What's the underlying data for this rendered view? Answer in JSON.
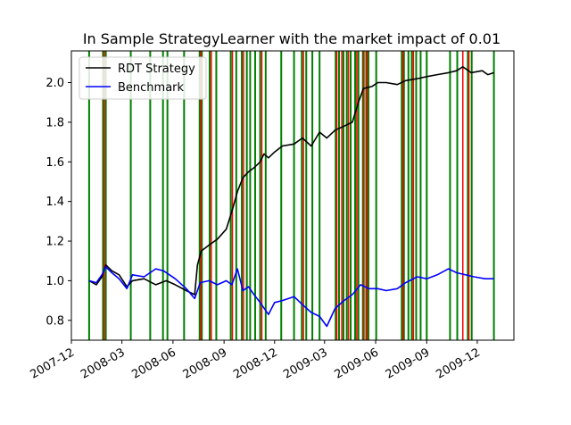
{
  "chart_data": {
    "type": "line",
    "title": "In Sample StrategyLearner with the market impact of 0.01",
    "xlabel": "",
    "ylabel": "",
    "xlim": [
      "2007-12-01",
      "2010-02-05"
    ],
    "ylim": [
      0.7,
      2.16
    ],
    "x_ticks": [
      "2007-12",
      "2008-03",
      "2008-06",
      "2008-09",
      "2008-12",
      "2009-03",
      "2009-06",
      "2009-09",
      "2009-12"
    ],
    "y_ticks": [
      0.8,
      1.0,
      1.2,
      1.4,
      1.6,
      1.8,
      2.0
    ],
    "grid": false,
    "legend": {
      "placement": "top-left",
      "entries": [
        "RDT Strategy",
        "Benchmark"
      ]
    },
    "series": [
      {
        "name": "RDT Strategy",
        "color": "#000000",
        "points": [
          [
            "2008-01-02",
            1.0
          ],
          [
            "2008-01-15",
            0.98
          ],
          [
            "2008-01-25",
            1.02
          ],
          [
            "2008-02-01",
            1.08
          ],
          [
            "2008-02-12",
            1.05
          ],
          [
            "2008-02-25",
            1.03
          ],
          [
            "2008-03-10",
            0.97
          ],
          [
            "2008-03-20",
            1.0
          ],
          [
            "2008-04-10",
            1.01
          ],
          [
            "2008-05-01",
            0.98
          ],
          [
            "2008-05-20",
            1.0
          ],
          [
            "2008-06-05",
            0.98
          ],
          [
            "2008-06-25",
            0.95
          ],
          [
            "2008-07-10",
            0.93
          ],
          [
            "2008-07-15",
            1.08
          ],
          [
            "2008-07-22",
            1.15
          ],
          [
            "2008-08-05",
            1.18
          ],
          [
            "2008-08-20",
            1.21
          ],
          [
            "2008-09-05",
            1.26
          ],
          [
            "2008-09-15",
            1.35
          ],
          [
            "2008-09-25",
            1.45
          ],
          [
            "2008-10-05",
            1.52
          ],
          [
            "2008-10-15",
            1.55
          ],
          [
            "2008-10-25",
            1.57
          ],
          [
            "2008-11-05",
            1.6
          ],
          [
            "2008-11-12",
            1.64
          ],
          [
            "2008-11-20",
            1.62
          ],
          [
            "2008-12-01",
            1.65
          ],
          [
            "2008-12-15",
            1.68
          ],
          [
            "2009-01-05",
            1.69
          ],
          [
            "2009-01-20",
            1.72
          ],
          [
            "2009-02-05",
            1.68
          ],
          [
            "2009-02-20",
            1.75
          ],
          [
            "2009-03-05",
            1.72
          ],
          [
            "2009-03-20",
            1.76
          ],
          [
            "2009-04-05",
            1.78
          ],
          [
            "2009-04-20",
            1.8
          ],
          [
            "2009-05-01",
            1.9
          ],
          [
            "2009-05-10",
            1.97
          ],
          [
            "2009-05-25",
            1.98
          ],
          [
            "2009-06-05",
            2.0
          ],
          [
            "2009-06-20",
            2.0
          ],
          [
            "2009-07-10",
            1.99
          ],
          [
            "2009-07-25",
            2.01
          ],
          [
            "2009-08-15",
            2.02
          ],
          [
            "2009-09-01",
            2.03
          ],
          [
            "2009-09-20",
            2.04
          ],
          [
            "2009-10-10",
            2.05
          ],
          [
            "2009-10-25",
            2.06
          ],
          [
            "2009-11-05",
            2.08
          ],
          [
            "2009-11-20",
            2.05
          ],
          [
            "2009-12-10",
            2.06
          ],
          [
            "2009-12-20",
            2.04
          ],
          [
            "2009-12-31",
            2.05
          ]
        ]
      },
      {
        "name": "Benchmark",
        "color": "#0000ff",
        "points": [
          [
            "2008-01-02",
            1.0
          ],
          [
            "2008-01-15",
            0.99
          ],
          [
            "2008-01-25",
            1.03
          ],
          [
            "2008-02-01",
            1.07
          ],
          [
            "2008-02-12",
            1.04
          ],
          [
            "2008-02-25",
            1.01
          ],
          [
            "2008-03-10",
            0.96
          ],
          [
            "2008-03-20",
            1.03
          ],
          [
            "2008-04-10",
            1.02
          ],
          [
            "2008-05-01",
            1.06
          ],
          [
            "2008-05-15",
            1.05
          ],
          [
            "2008-06-05",
            1.01
          ],
          [
            "2008-06-25",
            0.96
          ],
          [
            "2008-07-10",
            0.91
          ],
          [
            "2008-07-20",
            0.99
          ],
          [
            "2008-08-05",
            1.0
          ],
          [
            "2008-08-20",
            0.98
          ],
          [
            "2008-09-05",
            1.0
          ],
          [
            "2008-09-15",
            0.98
          ],
          [
            "2008-09-25",
            1.06
          ],
          [
            "2008-10-05",
            0.95
          ],
          [
            "2008-10-15",
            0.97
          ],
          [
            "2008-10-25",
            0.93
          ],
          [
            "2008-11-05",
            0.89
          ],
          [
            "2008-11-20",
            0.83
          ],
          [
            "2008-12-01",
            0.89
          ],
          [
            "2008-12-15",
            0.9
          ],
          [
            "2009-01-05",
            0.92
          ],
          [
            "2009-01-20",
            0.88
          ],
          [
            "2009-02-05",
            0.84
          ],
          [
            "2009-02-20",
            0.82
          ],
          [
            "2009-03-05",
            0.77
          ],
          [
            "2009-03-20",
            0.86
          ],
          [
            "2009-04-05",
            0.9
          ],
          [
            "2009-04-20",
            0.93
          ],
          [
            "2009-05-05",
            0.98
          ],
          [
            "2009-05-20",
            0.96
          ],
          [
            "2009-06-05",
            0.96
          ],
          [
            "2009-06-20",
            0.95
          ],
          [
            "2009-07-10",
            0.96
          ],
          [
            "2009-07-25",
            0.99
          ],
          [
            "2009-08-15",
            1.02
          ],
          [
            "2009-09-01",
            1.01
          ],
          [
            "2009-09-20",
            1.03
          ],
          [
            "2009-10-10",
            1.06
          ],
          [
            "2009-10-25",
            1.04
          ],
          [
            "2009-11-10",
            1.03
          ],
          [
            "2009-11-25",
            1.02
          ],
          [
            "2009-12-15",
            1.01
          ],
          [
            "2009-12-31",
            1.01
          ]
        ]
      }
    ],
    "vertical_lines": {
      "long_color": "#008000",
      "short_color": "#ff0000",
      "long_dates": [
        "2008-01-02",
        "2008-01-27",
        "2008-02-01",
        "2008-03-17",
        "2008-04-21",
        "2008-05-14",
        "2008-05-22",
        "2008-06-21",
        "2008-07-19",
        "2008-07-23",
        "2008-08-06",
        "2008-08-18",
        "2008-09-13",
        "2008-09-23",
        "2008-10-03",
        "2008-10-12",
        "2008-10-18",
        "2008-10-27",
        "2008-11-05",
        "2008-11-15",
        "2008-12-13",
        "2009-01-05",
        "2009-01-19",
        "2009-01-27",
        "2009-02-07",
        "2009-02-20",
        "2009-03-21",
        "2009-03-27",
        "2009-04-04",
        "2009-04-10",
        "2009-04-17",
        "2009-04-25",
        "2009-05-01",
        "2009-05-09",
        "2009-05-15",
        "2009-05-19",
        "2009-06-02",
        "2009-07-18",
        "2009-07-22",
        "2009-07-30",
        "2009-08-05",
        "2009-08-13",
        "2009-08-21",
        "2009-09-01",
        "2009-10-13",
        "2009-10-26",
        "2009-11-14",
        "2009-11-21",
        "2009-12-31"
      ],
      "short_dates": [
        "2008-01-29",
        "2008-07-21",
        "2008-08-09",
        "2008-09-16",
        "2008-10-06",
        "2008-11-08",
        "2009-01-22",
        "2009-03-23",
        "2009-04-01",
        "2009-04-13",
        "2009-04-28",
        "2009-05-11",
        "2009-05-17",
        "2009-07-20",
        "2009-08-08",
        "2009-11-05",
        "2009-11-16"
      ]
    }
  }
}
